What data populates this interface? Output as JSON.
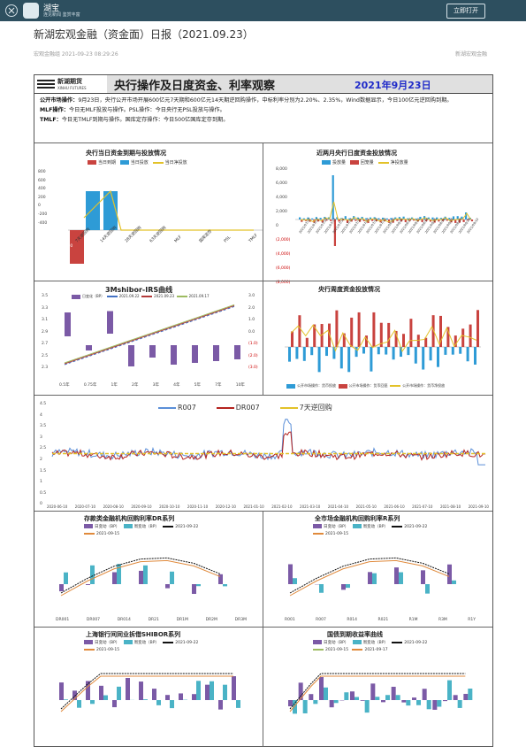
{
  "app": {
    "name": "湖宝",
    "subtitle": "连见新闻 鉴赏丰富",
    "open_button": "立即打开"
  },
  "article": {
    "title": "新湖宏观金融（资金面）日报（2021.09.23）",
    "meta": "宏观金融组 2021-09-23 08:29:26",
    "source": "新湖宏观金融"
  },
  "report": {
    "brand": "新湖期货",
    "brand_en": "XINHU FUTURES",
    "title": "央行操作及日度资金、利率观察",
    "date": "2021年9月23日",
    "summary": [
      {
        "label": "公开市场操作：",
        "text": "9月23日，央行公开市场开展600亿元7天期和600亿元14天期逆回购操作，中标利率分别为2.20%、2.35%，Wind数据显示，今日100亿元逆回购到期。"
      },
      {
        "label": "MLF操作：",
        "text": "今日无MLF投放与操作。PSL操作：今日央行无PSL投放与操作。"
      },
      {
        "label": "TMLF：",
        "text": "今日无TMLF到期与操作。国库定存操作：今日500亿国库定存到期。"
      }
    ]
  },
  "panels": {
    "p1": {
      "title": "央行当日资金到期与投放情况",
      "legend": [
        "当日到期",
        "当日投放",
        "当日净投放"
      ],
      "yticks": [
        "800",
        "600",
        "400",
        "200",
        "0",
        "-200",
        "-400"
      ],
      "categories": [
        "7天逆回购",
        "14天逆回购",
        "28天逆回购",
        "63天逆回购",
        "MLF",
        "国库定存",
        "PSL",
        "TMLF"
      ],
      "neg_label": "-500"
    },
    "p2": {
      "title": "近两月央行日度资金投放情况",
      "legend": [
        "投放量",
        "回笼量",
        "净投放量"
      ],
      "yticks": [
        "8,000",
        "6,000",
        "4,000",
        "2,000",
        "0",
        "(2,000)",
        "(4,000)",
        "(6,000)",
        "(8,000)"
      ]
    },
    "p3": {
      "title": "3Mshibor-IRS曲线",
      "legend": [
        "日变化（BP）",
        "2021.09.22",
        "2021.09.23",
        "2021.09.17"
      ],
      "yticks_left": [
        "3.5",
        "3.3",
        "3.1",
        "2.9",
        "2.7",
        "2.5",
        "2.3"
      ],
      "yticks_right": [
        "3.0",
        "2.0",
        "1.0",
        "0.0",
        "(1.0)",
        "(2.0)",
        "(3.0)"
      ],
      "categories": [
        "0.5年",
        "0.75年",
        "1年",
        "2年",
        "3年",
        "4年",
        "5年",
        "7年",
        "10年"
      ]
    },
    "p4": {
      "title": "央行周度资金投放情况",
      "legend": [
        "公开市场操作：货币投放",
        "公开市场操作：货币回笼",
        "公开市场操作：货币净投放"
      ]
    },
    "p5": {
      "legend": [
        "R007",
        "DR007",
        "7天逆回购"
      ],
      "yticks": [
        "4.5",
        "4",
        "3.5",
        "3",
        "2.5",
        "2",
        "1.5",
        "1",
        "0.5",
        "0"
      ],
      "xticks": [
        "2020-06-10",
        "2020-07-10",
        "2020-08-10",
        "2020-09-10",
        "2020-10-10",
        "2020-11-10",
        "2020-12-10",
        "2021-01-10",
        "2021-02-10",
        "2021-03-10",
        "2021-04-10",
        "2021-05-10",
        "2021-06-10",
        "2021-07-10",
        "2021-08-10",
        "2021-09-10"
      ]
    },
    "p6": {
      "title": "存款类金融机构回购利率DR系列",
      "legend": [
        "日变动（BP）",
        "周变动（BP）",
        "2021-09-22",
        "2021-09-15"
      ],
      "categories": [
        "DR001",
        "DR007",
        "DR014",
        "DR21",
        "DR1M",
        "DR2M",
        "DR3M"
      ]
    },
    "p7": {
      "title": "全市场金融机构回购利率R系列",
      "legend": [
        "日变动（BP）",
        "周变动（BP）",
        "2021-09-22",
        "2021-09-15"
      ],
      "categories": [
        "R001",
        "R007",
        "R014",
        "R021",
        "R1M",
        "R3M",
        "R1Y"
      ]
    },
    "p8": {
      "title": "上海银行间同业拆借SHIBOR系列",
      "legend": [
        "日变动（BP）",
        "周变动（BP）",
        "2021-09-22",
        "2021-09-15"
      ]
    },
    "p9": {
      "title": "国债到期收益率曲线",
      "legend": [
        "日变动（BP）",
        "周变动（BP）",
        "2021-09-22",
        "2021-09-15",
        "2021-09-17"
      ]
    }
  },
  "colors": {
    "blue": "#4472c4",
    "sky": "#2e9bd6",
    "red": "#b23a3a",
    "gold": "#e3c229",
    "purple": "#7b5aa6",
    "teal": "#4ab3c6"
  }
}
